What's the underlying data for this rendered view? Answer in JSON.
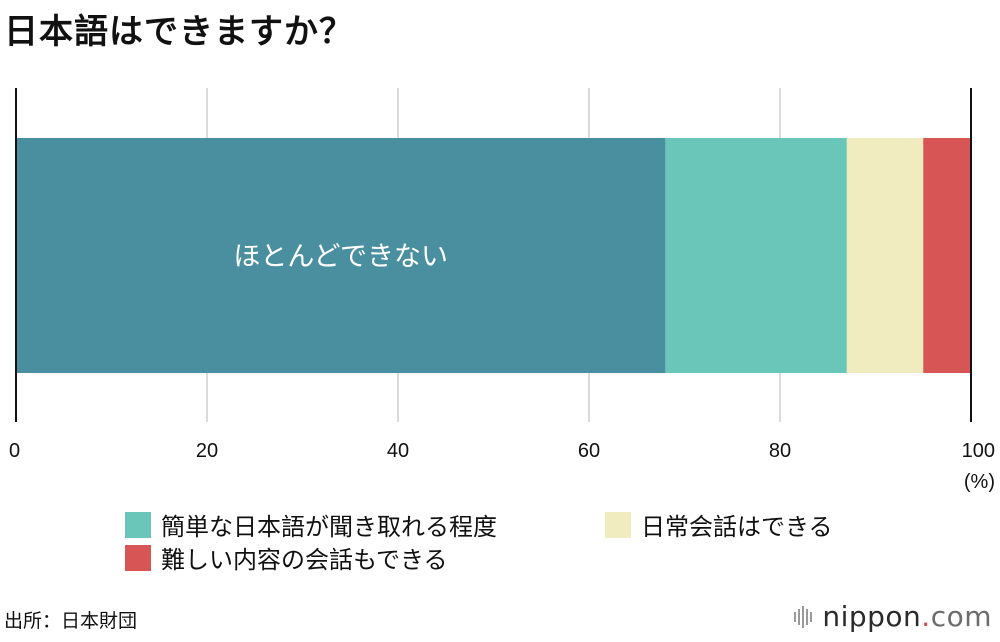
{
  "chart_data": {
    "type": "bar",
    "orientation": "horizontal-stacked",
    "title": "日本語はできますか？",
    "categories": [
      ""
    ],
    "series": [
      {
        "name": "ほとんどできない",
        "values": [
          68
        ],
        "color": "#4a8fa0"
      },
      {
        "name": "簡単な日本語が聞き取れる程度",
        "values": [
          19
        ],
        "color": "#6ac6b8"
      },
      {
        "name": "日常会話はできる",
        "values": [
          8
        ],
        "color": "#f1ecc0"
      },
      {
        "name": "難しい内容の会話もできる",
        "values": [
          5
        ],
        "color": "#d75555"
      }
    ],
    "inbar_label": "ほとんどできない",
    "xlim": [
      0,
      100
    ],
    "x_ticks": [
      "0",
      "20",
      "40",
      "60",
      "80",
      "100"
    ],
    "x_unit": "(%)",
    "grid": true,
    "legend": [
      {
        "label": "簡単な日本語が聞き取れる程度",
        "color": "#6ac6b8"
      },
      {
        "label": "日常会話はできる",
        "color": "#f1ecc0"
      },
      {
        "label": "難しい内容の会話もできる",
        "color": "#d75555"
      }
    ],
    "legend_placement": "bottom"
  },
  "footer": {
    "source": "出所：日本財団",
    "brand_name": "nippon",
    "brand_dot": ".",
    "brand_tld": "com"
  }
}
